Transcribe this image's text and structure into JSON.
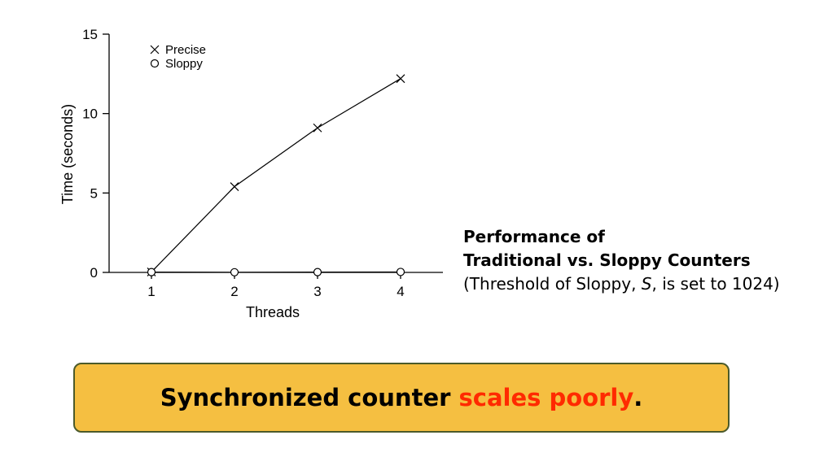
{
  "chart_data": {
    "type": "line",
    "categories": [
      1,
      2,
      3,
      4
    ],
    "x": [
      1,
      2,
      3,
      4
    ],
    "xlabel": "Threads",
    "ylabel": "Time (seconds)",
    "xticks": [
      "1",
      "2",
      "3",
      "4"
    ],
    "yticks": [
      "0",
      "5",
      "10",
      "15"
    ],
    "ylim": [
      0,
      15
    ],
    "xlim": [
      0.5,
      4.5
    ],
    "grid": false,
    "legend_position": "top-left",
    "series": [
      {
        "name": "Precise",
        "marker": "x",
        "values": [
          0.03,
          5.4,
          9.1,
          12.2
        ]
      },
      {
        "name": "Sloppy",
        "marker": "o",
        "values": [
          0.02,
          0.01,
          0.02,
          0.03
        ]
      }
    ]
  },
  "caption": {
    "line1": "Performance of",
    "line2": "Traditional vs. Sloppy Counters",
    "line3_prefix": "(Threshold of Sloppy, ",
    "line3_symbol": "S",
    "line3_suffix": ", is set to 1024)"
  },
  "callout": {
    "prefix": "Synchronized counter ",
    "highlight": "scales poorly",
    "suffix": "."
  },
  "colors": {
    "callout_bg": "#f5bf41",
    "callout_border": "#4b5a2a",
    "highlight": "#ff2a00"
  }
}
